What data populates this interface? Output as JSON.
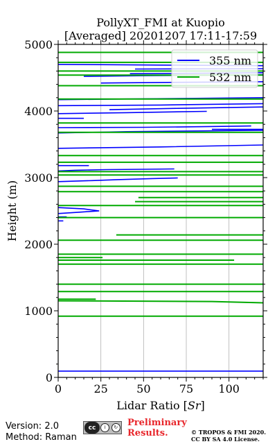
{
  "chart_data": {
    "type": "line",
    "title": "PollyXT_FMI at Kuopio",
    "subtitle": "[Averaged] 20201207 17:11-17:59",
    "xlabel": "Lidar Ratio [$Sr$]",
    "xlabel_plain": "Lidar Ratio [",
    "xlabel_unit": "Sr",
    "xlabel_close": "]",
    "ylabel": "Height (m)",
    "xlim": [
      0,
      120
    ],
    "ylim": [
      0,
      5000
    ],
    "xticks": [
      0,
      25,
      50,
      75,
      100
    ],
    "yticks": [
      0,
      1000,
      2000,
      3000,
      4000,
      5000
    ],
    "xtick_labels": [
      "0",
      "25",
      "50",
      "75",
      "100"
    ],
    "ytick_labels": [
      "0",
      "1000",
      "2000",
      "3000",
      "4000",
      "5000"
    ],
    "grid": "x-only",
    "legend_placement": "top-right",
    "series": [
      {
        "name": "355 nm",
        "color": "#0000ff",
        "segments": [
          {
            "x": [
              0,
              120
            ],
            "y": [
              95,
              95
            ]
          },
          {
            "x": [
              0,
              3
            ],
            "y": [
              2350,
              2350
            ]
          },
          {
            "x": [
              0,
              5
            ],
            "y": [
              2410,
              2410
            ]
          },
          {
            "x": [
              0,
              12,
              24,
              15,
              0
            ],
            "y": [
              2460,
              2480,
              2500,
              2530,
              2550
            ]
          },
          {
            "x": [
              0,
              20,
              35,
              55,
              70
            ],
            "y": [
              2940,
              2955,
              2970,
              2985,
              2995
            ]
          },
          {
            "x": [
              0,
              10,
              28,
              50,
              68
            ],
            "y": [
              3100,
              3110,
              3120,
              3125,
              3130
            ]
          },
          {
            "x": [
              0,
              18
            ],
            "y": [
              3180,
              3180
            ]
          },
          {
            "x": [
              0,
              60,
              120
            ],
            "y": [
              3440,
              3460,
              3490
            ]
          },
          {
            "x": [
              0,
              40,
              80,
              120
            ],
            "y": [
              3670,
              3690,
              3700,
              3710
            ]
          },
          {
            "x": [
              0,
              50,
              85,
              113
            ],
            "y": [
              3750,
              3755,
              3765,
              3775
            ]
          },
          {
            "x": [
              90,
              120
            ],
            "y": [
              3725,
              3725
            ]
          },
          {
            "x": [
              0,
              15
            ],
            "y": [
              3890,
              3890
            ]
          },
          {
            "x": [
              0,
              40,
              87
            ],
            "y": [
              3960,
              3975,
              3995
            ]
          },
          {
            "x": [
              30,
              70,
              120
            ],
            "y": [
              4020,
              4040,
              4060
            ]
          },
          {
            "x": [
              0,
              60,
              120
            ],
            "y": [
              4080,
              4090,
              4110
            ]
          },
          {
            "x": [
              0,
              40,
              80,
              120
            ],
            "y": [
              4170,
              4180,
              4190,
              4200
            ]
          },
          {
            "x": [
              25,
              70,
              120
            ],
            "y": [
              4420,
              4430,
              4440
            ]
          },
          {
            "x": [
              15,
              50,
              120
            ],
            "y": [
              4520,
              4530,
              4545
            ]
          },
          {
            "x": [
              42,
              100,
              120
            ],
            "y": [
              4560,
              4570,
              4575
            ]
          },
          {
            "x": [
              45,
              120
            ],
            "y": [
              4630,
              4635
            ]
          },
          {
            "x": [
              0,
              60,
              120
            ],
            "y": [
              4700,
              4690,
              4680
            ]
          }
        ]
      },
      {
        "name": "532 nm",
        "color": "#00aa00",
        "segments": [
          {
            "x": [
              0,
              120
            ],
            "y": [
              920,
              920
            ]
          },
          {
            "x": [
              0,
              90,
              120
            ],
            "y": [
              1150,
              1140,
              1120
            ]
          },
          {
            "x": [
              0,
              22
            ],
            "y": [
              1175,
              1175
            ]
          },
          {
            "x": [
              0,
              120
            ],
            "y": [
              1290,
              1290
            ]
          },
          {
            "x": [
              0,
              120
            ],
            "y": [
              1400,
              1400
            ]
          },
          {
            "x": [
              0,
              120
            ],
            "y": [
              1700,
              1700
            ]
          },
          {
            "x": [
              0,
              103
            ],
            "y": [
              1760,
              1760
            ]
          },
          {
            "x": [
              0,
              26
            ],
            "y": [
              1800,
              1800
            ]
          },
          {
            "x": [
              0,
              120
            ],
            "y": [
              1850,
              1850
            ]
          },
          {
            "x": [
              0,
              120
            ],
            "y": [
              2060,
              2060
            ]
          },
          {
            "x": [
              34,
              120
            ],
            "y": [
              2140,
              2140
            ]
          },
          {
            "x": [
              0,
              120
            ],
            "y": [
              2400,
              2400
            ]
          },
          {
            "x": [
              0,
              120
            ],
            "y": [
              2580,
              2580
            ]
          },
          {
            "x": [
              45,
              120
            ],
            "y": [
              2640,
              2640
            ]
          },
          {
            "x": [
              47,
              120
            ],
            "y": [
              2700,
              2700
            ]
          },
          {
            "x": [
              0,
              120
            ],
            "y": [
              2790,
              2790
            ]
          },
          {
            "x": [
              0,
              120
            ],
            "y": [
              2870,
              2870
            ]
          },
          {
            "x": [
              0,
              120
            ],
            "y": [
              3040,
              3040
            ]
          },
          {
            "x": [
              0,
              120
            ],
            "y": [
              3090,
              3090
            ]
          },
          {
            "x": [
              0,
              120
            ],
            "y": [
              3230,
              3230
            ]
          },
          {
            "x": [
              0,
              120
            ],
            "y": [
              3330,
              3330
            ]
          },
          {
            "x": [
              0,
              120
            ],
            "y": [
              3680,
              3680
            ]
          },
          {
            "x": [
              0,
              120
            ],
            "y": [
              3820,
              3820
            ]
          },
          {
            "x": [
              0,
              120
            ],
            "y": [
              4180,
              4180
            ]
          },
          {
            "x": [
              0,
              120
            ],
            "y": [
              4380,
              4380
            ]
          },
          {
            "x": [
              0,
              120
            ],
            "y": [
              4540,
              4540
            ]
          },
          {
            "x": [
              0,
              120
            ],
            "y": [
              4600,
              4600
            ]
          },
          {
            "x": [
              0,
              120
            ],
            "y": [
              4730,
              4730
            ]
          },
          {
            "x": [
              0,
              120
            ],
            "y": [
              4880,
              4880
            ]
          }
        ]
      }
    ]
  },
  "footer": {
    "version": "Version: 2.0",
    "method": "Method: Raman",
    "preliminary_line1": "Preliminary",
    "preliminary_line2": "Results.",
    "copyright_line1": "© TROPOS & FMI 2020.",
    "copyright_line2": "CC BY SA 4.0 License.",
    "license_badge": "cc",
    "license_badge_sub": "BY SA"
  },
  "colors": {
    "grid": "#b0b0b0",
    "axis": "#000000",
    "preliminary": "#e8262b"
  }
}
